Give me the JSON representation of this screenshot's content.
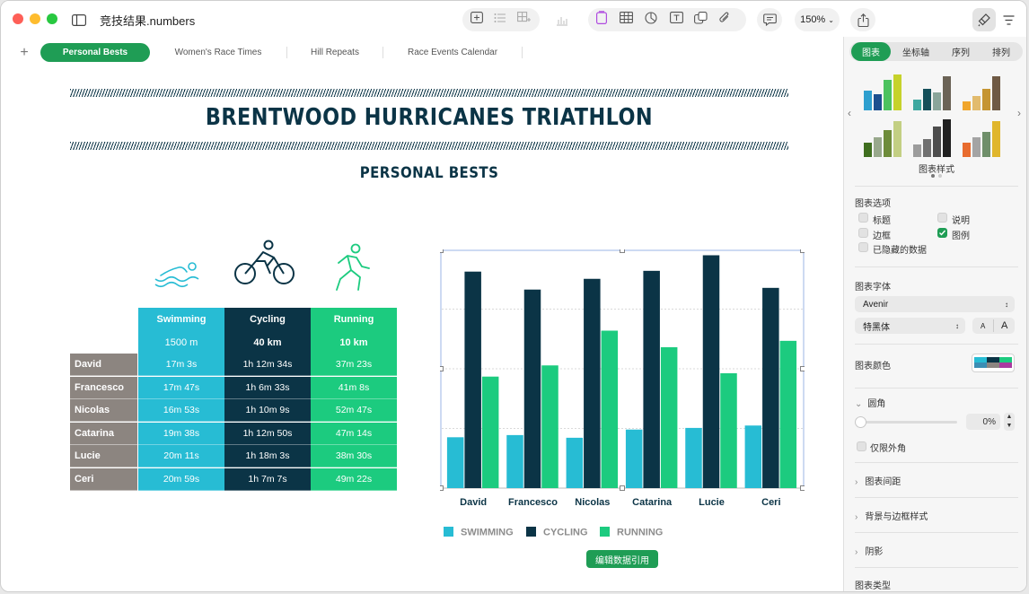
{
  "window": {
    "title": "竞技结果.numbers"
  },
  "toolbar": {
    "zoom": "150%"
  },
  "sheet_tabs": [
    "Personal Bests",
    "Women's Race Times",
    "Hill Repeats",
    "Race Events Calendar"
  ],
  "document": {
    "title": "BRENTWOOD HURRICANES TRIATHLON",
    "subtitle": "PERSONAL BESTS",
    "table": {
      "headers": [
        {
          "sport": "Swimming",
          "distance": "1500 m"
        },
        {
          "sport": "Cycling",
          "distance": "40 km"
        },
        {
          "sport": "Running",
          "distance": "10 km"
        }
      ],
      "rows": [
        {
          "name": "David",
          "swim": "17m 3s",
          "cycle": "1h 12m 34s",
          "run": "37m 23s"
        },
        {
          "name": "Francesco",
          "swim": "17m 47s",
          "cycle": "1h 6m 33s",
          "run": "41m 8s"
        },
        {
          "name": "Nicolas",
          "swim": "16m 53s",
          "cycle": "1h 10m 9s",
          "run": "52m 47s"
        },
        {
          "name": "Catarina",
          "swim": "19m 38s",
          "cycle": "1h 12m 50s",
          "run": "47m 14s"
        },
        {
          "name": "Lucie",
          "swim": "20m 11s",
          "cycle": "1h 18m 3s",
          "run": "38m 30s"
        },
        {
          "name": "Ceri",
          "swim": "20m 59s",
          "cycle": "1h 7m 7s",
          "run": "49m 22s"
        }
      ]
    },
    "edit_data_button": "编辑数据引用"
  },
  "chart_data": {
    "type": "bar",
    "categories": [
      "David",
      "Francesco",
      "Nicolas",
      "Catarina",
      "Lucie",
      "Ceri"
    ],
    "series": [
      {
        "name": "SWIMMING",
        "color": "#27bcd4",
        "values": [
          17.05,
          17.78,
          16.88,
          19.63,
          20.18,
          20.98
        ]
      },
      {
        "name": "CYCLING",
        "color": "#0b3446",
        "values": [
          72.57,
          66.55,
          70.15,
          72.83,
          78.05,
          67.12
        ]
      },
      {
        "name": "RUNNING",
        "color": "#1ccb7f",
        "values": [
          37.38,
          41.13,
          52.78,
          47.23,
          38.5,
          49.37
        ]
      }
    ],
    "ylim": [
      0,
      80
    ],
    "grid": true,
    "legend": "bottom"
  },
  "inspector": {
    "tabs": [
      "图表",
      "坐标轴",
      "序列",
      "排列"
    ],
    "styles_label": "图表样式",
    "options_header": "图表选项",
    "options": [
      {
        "label": "标题",
        "checked": false
      },
      {
        "label": "说明",
        "checked": false
      },
      {
        "label": "边框",
        "checked": false
      },
      {
        "label": "图例",
        "checked": true
      },
      {
        "label": "已隐藏的数据",
        "checked": false
      }
    ],
    "font_header": "图表字体",
    "font_family": "Avenir",
    "font_style": "特黑体",
    "font_small": "A",
    "font_large": "A",
    "color_header": "图表颜色",
    "corner_header": "圆角",
    "corner_value": "0%",
    "outside_only": "仅限外角",
    "gap_header": "图表间距",
    "bg_header": "背景与边框样式",
    "shadow_header": "阴影",
    "type_header": "图表类型"
  }
}
